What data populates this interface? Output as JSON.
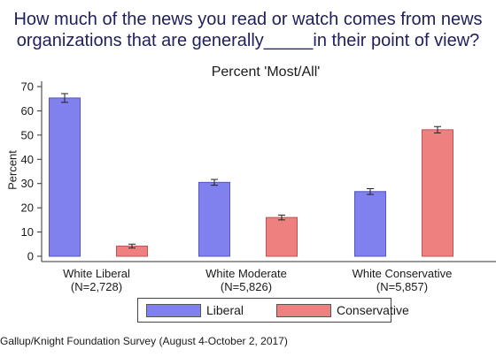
{
  "title": {
    "line1": "How much of the news you read or watch comes from news",
    "line2": "organizations that are generally_____in their point of view?"
  },
  "source": "Gallup/Knight Foundation Survey (August 4-October 2, 2017)",
  "colors": {
    "liberal": "#8080ee",
    "conservative": "#ee8080"
  },
  "chart_data": {
    "type": "bar",
    "title": "Percent 'Most/All'",
    "xlabel": "",
    "ylabel": "Percent",
    "ylim": [
      0,
      70
    ],
    "yticks": [
      0,
      10,
      20,
      30,
      40,
      50,
      60,
      70
    ],
    "grid": false,
    "legend": "bottom",
    "categories": [
      "White Liberal",
      "White Moderate",
      "White Conservative"
    ],
    "category_notes": [
      "(N=2,728)",
      "(N=5,826)",
      "(N=5,857)"
    ],
    "series": [
      {
        "name": "Liberal",
        "values": [
          65.3,
          30.5,
          26.7
        ],
        "error": [
          1.8,
          1.2,
          1.2
        ]
      },
      {
        "name": "Conservative",
        "values": [
          4.2,
          16.0,
          52.2
        ],
        "error": [
          0.8,
          1.0,
          1.3
        ]
      }
    ]
  }
}
